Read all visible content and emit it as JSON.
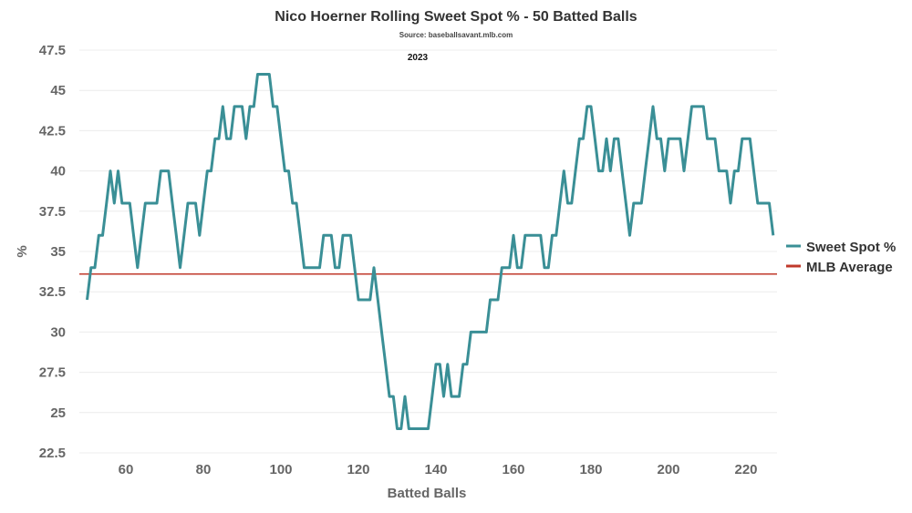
{
  "chart_data": {
    "type": "line",
    "title": "Nico Hoerner Rolling Sweet Spot % - 50 Batted Balls",
    "source": "Source: baseballsavant.mlb.com",
    "subtitle": "2023",
    "xlabel": "Batted Balls",
    "ylabel": "%",
    "xlim": [
      48,
      228
    ],
    "ylim": [
      22.5,
      47.5
    ],
    "x_ticks": [
      60,
      80,
      100,
      120,
      140,
      160,
      180,
      200,
      220
    ],
    "y_ticks": [
      22.5,
      25,
      27.5,
      30,
      32.5,
      35,
      37.5,
      40,
      42.5,
      45,
      47.5
    ],
    "y_tick_labels": [
      "22.5",
      "25",
      "27.5",
      "30",
      "32.5",
      "35",
      "37.5",
      "40",
      "42.5",
      "45",
      "47.5"
    ],
    "grid": true,
    "legend_position": "right",
    "series": [
      {
        "name": "Sweet Spot %",
        "color": "#3a8f96",
        "points": [
          [
            50,
            32
          ],
          [
            51,
            34
          ],
          [
            52,
            34
          ],
          [
            53,
            36
          ],
          [
            54,
            36
          ],
          [
            55,
            38
          ],
          [
            56,
            40
          ],
          [
            57,
            38
          ],
          [
            58,
            40
          ],
          [
            59,
            38
          ],
          [
            60,
            38
          ],
          [
            61,
            38
          ],
          [
            62,
            36
          ],
          [
            63,
            34
          ],
          [
            64,
            36
          ],
          [
            65,
            38
          ],
          [
            66,
            38
          ],
          [
            67,
            38
          ],
          [
            68,
            38
          ],
          [
            69,
            40
          ],
          [
            70,
            40
          ],
          [
            71,
            40
          ],
          [
            72,
            38
          ],
          [
            73,
            36
          ],
          [
            74,
            34
          ],
          [
            75,
            36
          ],
          [
            76,
            38
          ],
          [
            77,
            38
          ],
          [
            78,
            38
          ],
          [
            79,
            36
          ],
          [
            80,
            38
          ],
          [
            81,
            40
          ],
          [
            82,
            40
          ],
          [
            83,
            42
          ],
          [
            84,
            42
          ],
          [
            85,
            44
          ],
          [
            86,
            42
          ],
          [
            87,
            42
          ],
          [
            88,
            44
          ],
          [
            89,
            44
          ],
          [
            90,
            44
          ],
          [
            91,
            42
          ],
          [
            92,
            44
          ],
          [
            93,
            44
          ],
          [
            94,
            46
          ],
          [
            95,
            46
          ],
          [
            96,
            46
          ],
          [
            97,
            46
          ],
          [
            98,
            44
          ],
          [
            99,
            44
          ],
          [
            100,
            42
          ],
          [
            101,
            40
          ],
          [
            102,
            40
          ],
          [
            103,
            38
          ],
          [
            104,
            38
          ],
          [
            105,
            36
          ],
          [
            106,
            34
          ],
          [
            107,
            34
          ],
          [
            108,
            34
          ],
          [
            109,
            34
          ],
          [
            110,
            34
          ],
          [
            111,
            36
          ],
          [
            112,
            36
          ],
          [
            113,
            36
          ],
          [
            114,
            34
          ],
          [
            115,
            34
          ],
          [
            116,
            36
          ],
          [
            117,
            36
          ],
          [
            118,
            36
          ],
          [
            119,
            34
          ],
          [
            120,
            32
          ],
          [
            121,
            32
          ],
          [
            122,
            32
          ],
          [
            123,
            32
          ],
          [
            124,
            34
          ],
          [
            125,
            32
          ],
          [
            126,
            30
          ],
          [
            127,
            28
          ],
          [
            128,
            26
          ],
          [
            129,
            26
          ],
          [
            130,
            24
          ],
          [
            131,
            24
          ],
          [
            132,
            26
          ],
          [
            133,
            24
          ],
          [
            134,
            24
          ],
          [
            135,
            24
          ],
          [
            136,
            24
          ],
          [
            137,
            24
          ],
          [
            138,
            24
          ],
          [
            139,
            26
          ],
          [
            140,
            28
          ],
          [
            141,
            28
          ],
          [
            142,
            26
          ],
          [
            143,
            28
          ],
          [
            144,
            26
          ],
          [
            145,
            26
          ],
          [
            146,
            26
          ],
          [
            147,
            28
          ],
          [
            148,
            28
          ],
          [
            149,
            30
          ],
          [
            150,
            30
          ],
          [
            151,
            30
          ],
          [
            152,
            30
          ],
          [
            153,
            30
          ],
          [
            154,
            32
          ],
          [
            155,
            32
          ],
          [
            156,
            32
          ],
          [
            157,
            34
          ],
          [
            158,
            34
          ],
          [
            159,
            34
          ],
          [
            160,
            36
          ],
          [
            161,
            34
          ],
          [
            162,
            34
          ],
          [
            163,
            36
          ],
          [
            164,
            36
          ],
          [
            165,
            36
          ],
          [
            166,
            36
          ],
          [
            167,
            36
          ],
          [
            168,
            34
          ],
          [
            169,
            34
          ],
          [
            170,
            36
          ],
          [
            171,
            36
          ],
          [
            172,
            38
          ],
          [
            173,
            40
          ],
          [
            174,
            38
          ],
          [
            175,
            38
          ],
          [
            176,
            40
          ],
          [
            177,
            42
          ],
          [
            178,
            42
          ],
          [
            179,
            44
          ],
          [
            180,
            44
          ],
          [
            181,
            42
          ],
          [
            182,
            40
          ],
          [
            183,
            40
          ],
          [
            184,
            42
          ],
          [
            185,
            40
          ],
          [
            186,
            42
          ],
          [
            187,
            42
          ],
          [
            188,
            40
          ],
          [
            189,
            38
          ],
          [
            190,
            36
          ],
          [
            191,
            38
          ],
          [
            192,
            38
          ],
          [
            193,
            38
          ],
          [
            194,
            40
          ],
          [
            195,
            42
          ],
          [
            196,
            44
          ],
          [
            197,
            42
          ],
          [
            198,
            42
          ],
          [
            199,
            40
          ],
          [
            200,
            42
          ],
          [
            201,
            42
          ],
          [
            202,
            42
          ],
          [
            203,
            42
          ],
          [
            204,
            40
          ],
          [
            205,
            42
          ],
          [
            206,
            44
          ],
          [
            207,
            44
          ],
          [
            208,
            44
          ],
          [
            209,
            44
          ],
          [
            210,
            42
          ],
          [
            211,
            42
          ],
          [
            212,
            42
          ],
          [
            213,
            40
          ],
          [
            214,
            40
          ],
          [
            215,
            40
          ],
          [
            216,
            38
          ],
          [
            217,
            40
          ],
          [
            218,
            40
          ],
          [
            219,
            42
          ],
          [
            220,
            42
          ],
          [
            221,
            42
          ],
          [
            222,
            40
          ],
          [
            223,
            38
          ],
          [
            224,
            38
          ],
          [
            225,
            38
          ],
          [
            226,
            38
          ],
          [
            227,
            36
          ]
        ]
      },
      {
        "name": "MLB Average",
        "color": "#c0392b",
        "value": 33.6
      }
    ]
  }
}
